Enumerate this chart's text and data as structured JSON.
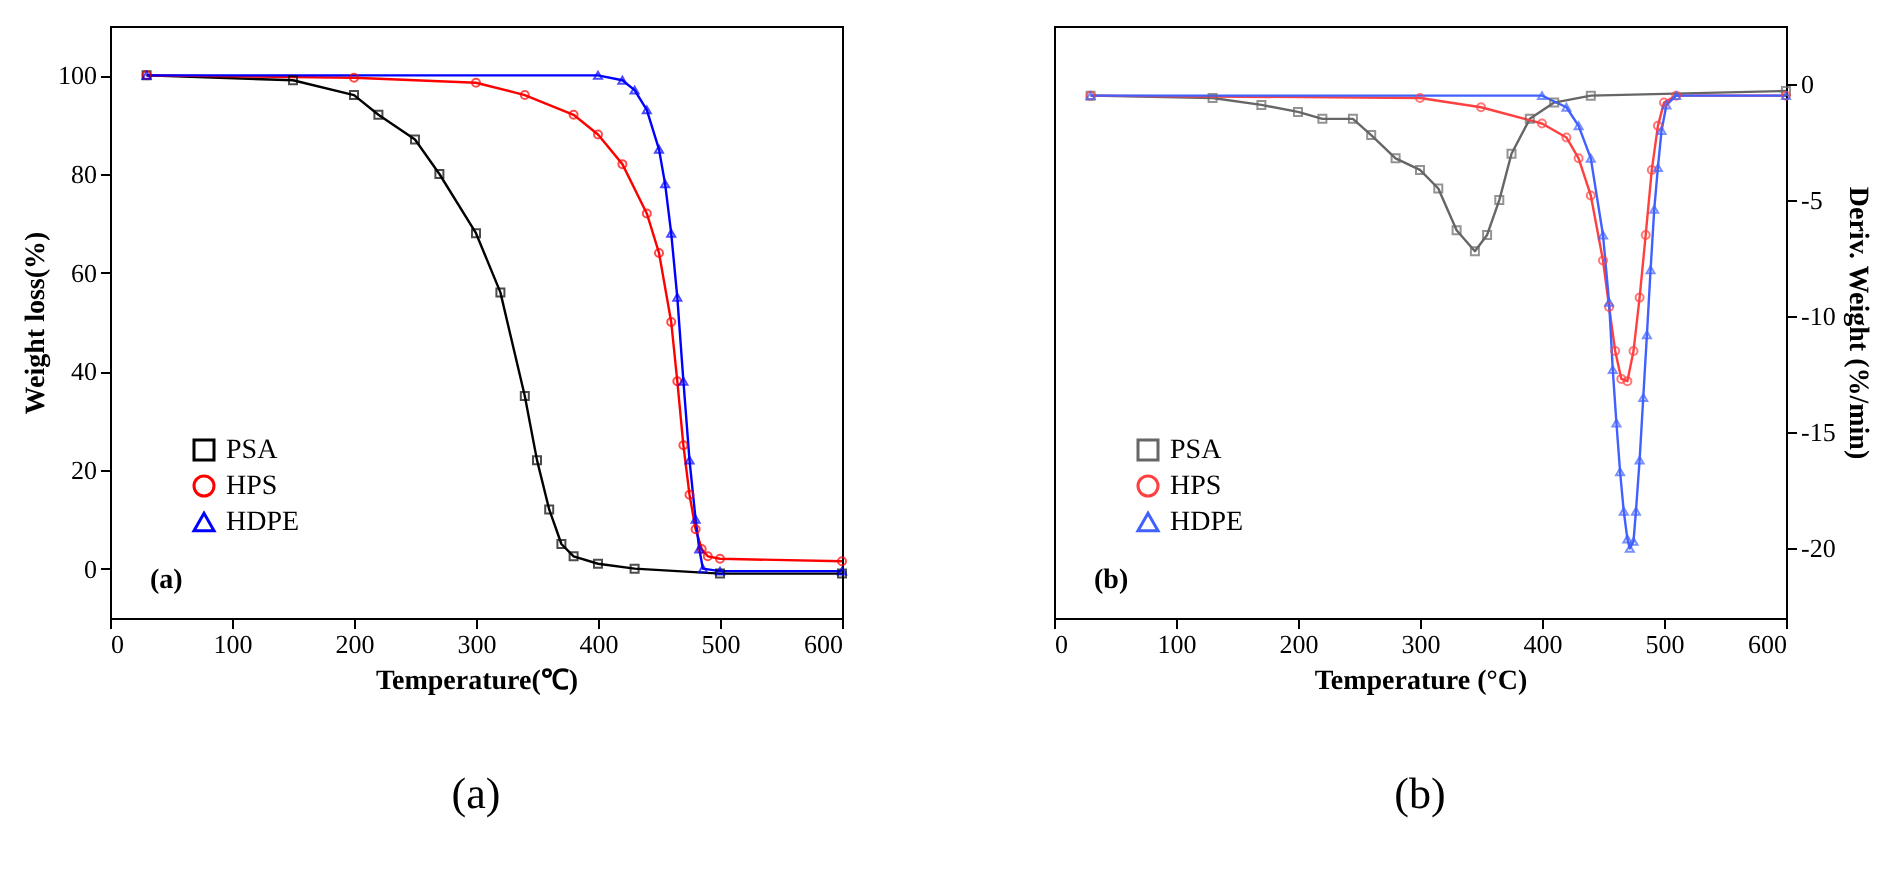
{
  "chart_data": [
    {
      "type": "line",
      "xlabel": "Temperature(℃)",
      "ylabel": "Weight loss(%)",
      "xlim": [
        0,
        600
      ],
      "xticks": [
        0,
        100,
        200,
        300,
        400,
        500,
        600
      ],
      "ylim": [
        -10,
        110
      ],
      "yticks": [
        0,
        20,
        40,
        60,
        80,
        100
      ],
      "grid": false,
      "legend": "bottom left",
      "annotations": [
        "(a)",
        "(a)"
      ],
      "series": [
        {
          "name": "PSA",
          "color": "#000000",
          "marker": "square",
          "x": [
            30,
            150,
            200,
            220,
            250,
            270,
            300,
            320,
            340,
            350,
            360,
            370,
            380,
            400,
            430,
            500,
            600
          ],
          "values": [
            100,
            99,
            96,
            92,
            87,
            80,
            68,
            56,
            35,
            22,
            12,
            5,
            2.5,
            1,
            0,
            -1,
            -1
          ]
        },
        {
          "name": "HPS",
          "color": "#ff0000",
          "marker": "circle",
          "x": [
            30,
            200,
            300,
            340,
            380,
            400,
            420,
            440,
            450,
            460,
            465,
            470,
            475,
            480,
            485,
            490,
            500,
            600
          ],
          "values": [
            100,
            99.5,
            98.5,
            96,
            92,
            88,
            82,
            72,
            64,
            50,
            38,
            25,
            15,
            8,
            4,
            2.5,
            2,
            1.5
          ]
        },
        {
          "name": "HDPE",
          "color": "#0000ff",
          "marker": "triangle",
          "x": [
            30,
            400,
            420,
            430,
            440,
            450,
            455,
            460,
            465,
            470,
            475,
            480,
            483,
            486,
            500,
            600
          ],
          "values": [
            100,
            100,
            99,
            97,
            93,
            85,
            78,
            68,
            55,
            38,
            22,
            10,
            4,
            0,
            -0.5,
            -0.5
          ]
        }
      ]
    },
    {
      "type": "line",
      "xlabel": "Temperature (°C)",
      "y2label": "Deriv. Weight (%/min)",
      "xlim": [
        0,
        600
      ],
      "xticks": [
        0,
        100,
        200,
        300,
        400,
        500,
        600
      ],
      "y2lim": [
        -23,
        2.5
      ],
      "y2ticks": [
        0,
        -5,
        -10,
        -15,
        -20
      ],
      "grid": false,
      "legend": "bottom left",
      "annotations": [
        "(b)",
        "(b)"
      ],
      "series": [
        {
          "name": "PSA",
          "color": "#666666",
          "marker": "square",
          "axis": "y2",
          "x": [
            30,
            130,
            170,
            200,
            220,
            245,
            260,
            280,
            300,
            315,
            330,
            345,
            355,
            365,
            375,
            390,
            410,
            440,
            600
          ],
          "values": [
            -0.5,
            -0.6,
            -0.9,
            -1.2,
            -1.5,
            -1.5,
            -2.2,
            -3.2,
            -3.7,
            -4.5,
            -6.3,
            -7.2,
            -6.5,
            -5,
            -3,
            -1.5,
            -0.8,
            -0.5,
            -0.3
          ]
        },
        {
          "name": "HPS",
          "color": "#ff4040",
          "marker": "circle",
          "axis": "y2",
          "x": [
            30,
            300,
            350,
            400,
            420,
            430,
            440,
            450,
            455,
            460,
            465,
            470,
            475,
            480,
            485,
            490,
            495,
            500,
            510,
            600
          ],
          "values": [
            -0.5,
            -0.6,
            -1,
            -1.7,
            -2.3,
            -3.2,
            -4.8,
            -7.6,
            -9.6,
            -11.5,
            -12.7,
            -12.8,
            -11.5,
            -9.2,
            -6.5,
            -3.7,
            -1.8,
            -0.8,
            -0.5,
            -0.5
          ]
        },
        {
          "name": "HDPE",
          "color": "#4060ff",
          "marker": "triangle",
          "axis": "y2",
          "x": [
            30,
            400,
            420,
            430,
            440,
            450,
            455,
            458,
            461,
            464,
            467,
            470,
            472,
            475,
            477,
            480,
            483,
            486,
            489,
            492,
            495,
            498,
            502,
            510,
            600
          ],
          "values": [
            -0.5,
            -0.5,
            -1,
            -1.8,
            -3.2,
            -6.5,
            -9.4,
            -12.3,
            -14.6,
            -16.7,
            -18.4,
            -19.6,
            -20,
            -19.7,
            -18.4,
            -16.2,
            -13.5,
            -10.8,
            -8,
            -5.4,
            -3.6,
            -2,
            -0.9,
            -0.5,
            -0.5
          ]
        }
      ]
    }
  ]
}
